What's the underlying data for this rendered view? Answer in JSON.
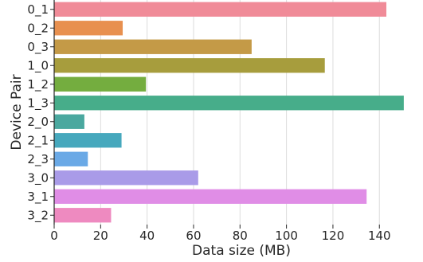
{
  "chart_data": {
    "type": "bar",
    "orientation": "horizontal",
    "title": "",
    "xlabel": "Data size (MB)",
    "ylabel": "Device Pair",
    "xlim": [
      0,
      155
    ],
    "xticks": [
      0,
      20,
      40,
      60,
      80,
      100,
      120,
      140
    ],
    "grid": "vertical",
    "categories": [
      "0_1",
      "0_2",
      "0_3",
      "1_0",
      "1_2",
      "1_3",
      "2_0",
      "2_1",
      "2_3",
      "3_0",
      "3_1",
      "3_2"
    ],
    "values": [
      143,
      29.5,
      85,
      116.5,
      39.5,
      150.5,
      13,
      29,
      14.5,
      62,
      134.5,
      24.5
    ],
    "colors": [
      "#f08b98",
      "#e8904f",
      "#c49a47",
      "#a79d3d",
      "#74ad3f",
      "#47ad8a",
      "#4aa89f",
      "#46a8bd",
      "#6aa9e6",
      "#a99be8",
      "#e08de6",
      "#ee8ac0"
    ]
  }
}
